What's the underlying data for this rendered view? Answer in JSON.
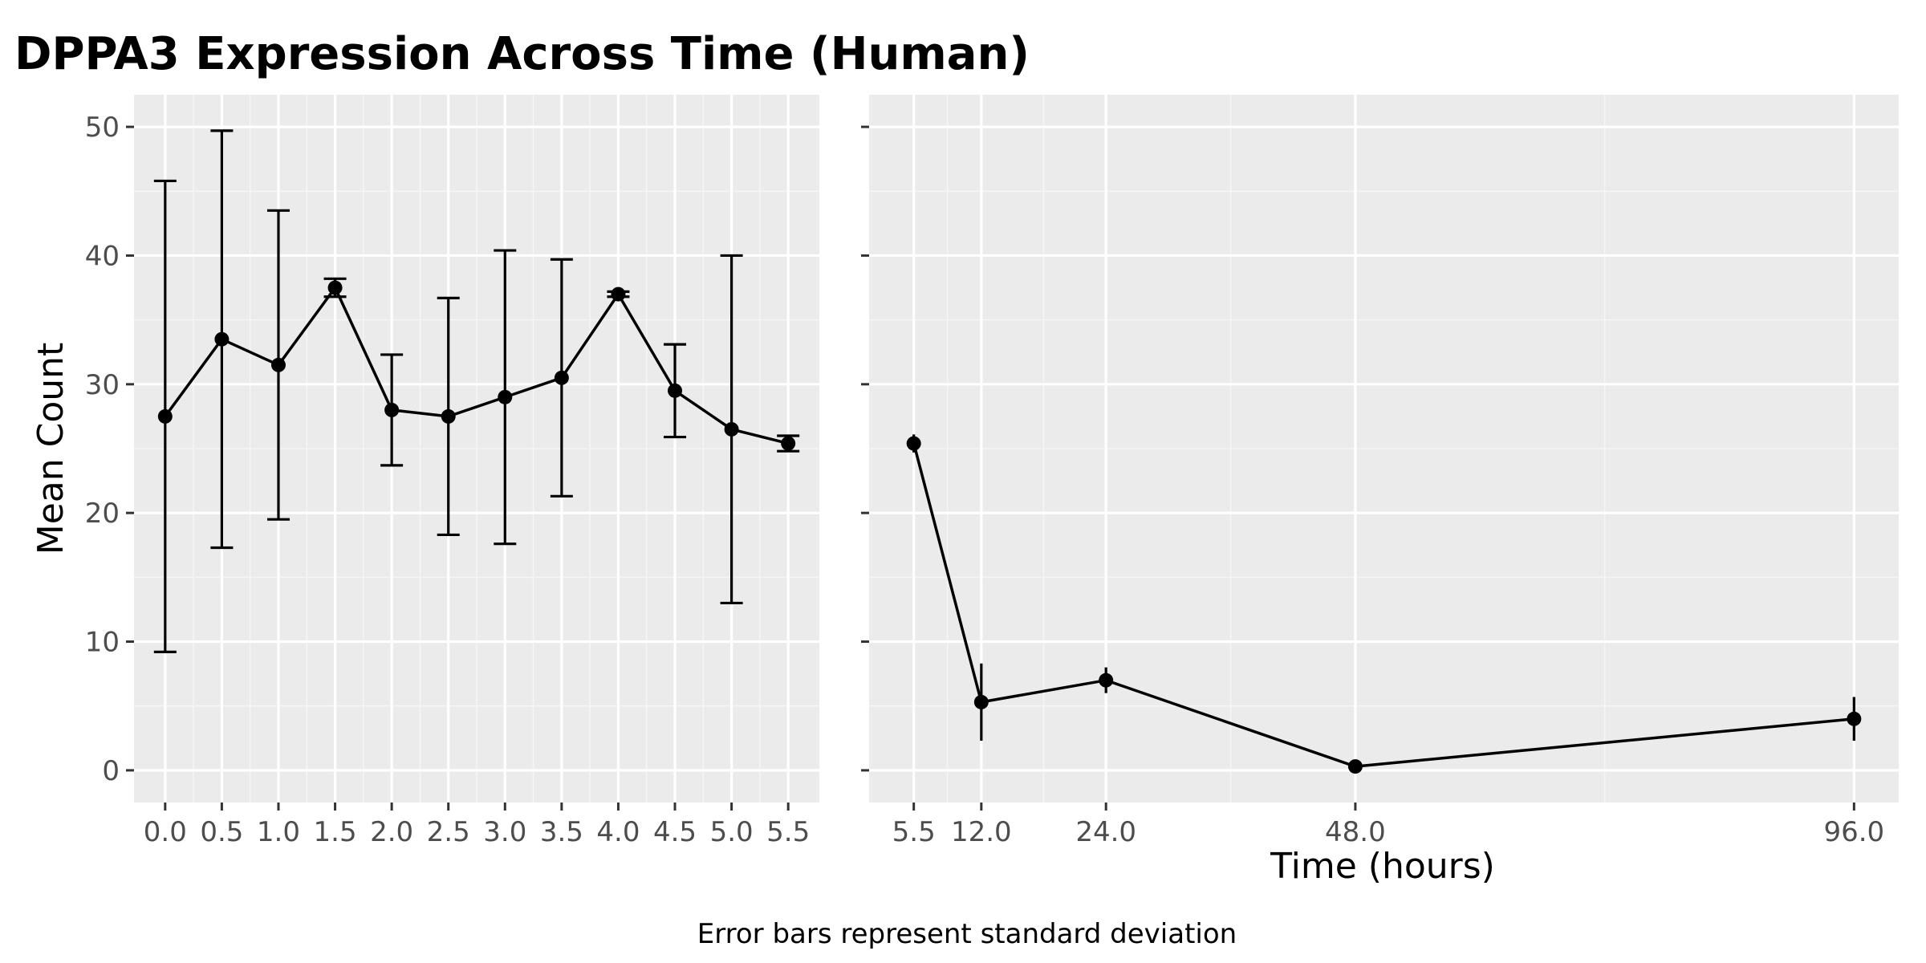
{
  "chart_data": {
    "type": "line",
    "title": "DPPA3 Expression Across Time (Human)",
    "xlabel": "Time (hours)",
    "ylabel": "Mean Count",
    "caption": "Error bars represent standard deviation",
    "ylim": [
      -2.5,
      52.5
    ],
    "yticks": [
      0,
      10,
      20,
      30,
      40,
      50
    ],
    "ytick_labels": [
      "0",
      "10",
      "20",
      "30",
      "40",
      "50"
    ],
    "grid": true,
    "legend": "none",
    "panels": [
      {
        "xlim": [
          -0.275,
          5.775
        ],
        "xticks": [
          0.0,
          0.5,
          1.0,
          1.5,
          2.0,
          2.5,
          3.0,
          3.5,
          4.0,
          4.5,
          5.0,
          5.5
        ],
        "xtick_labels": [
          "0.0",
          "0.5",
          "1.0",
          "1.5",
          "2.0",
          "2.5",
          "3.0",
          "3.5",
          "4.0",
          "4.5",
          "5.0",
          "5.5"
        ],
        "series": [
          {
            "x": [
              0.0,
              0.5,
              1.0,
              1.5,
              2.0,
              2.5,
              3.0,
              3.5,
              4.0,
              4.5,
              5.0,
              5.5
            ],
            "y": [
              27.5,
              33.5,
              31.5,
              37.5,
              28.0,
              27.5,
              29.0,
              30.5,
              37.0,
              29.5,
              26.5,
              25.4
            ],
            "sd": [
              18.3,
              16.2,
              12.0,
              0.7,
              4.3,
              9.2,
              11.4,
              9.2,
              0.2,
              3.6,
              13.5,
              0.6
            ]
          }
        ]
      },
      {
        "xlim": [
          1.2,
          100.3
        ],
        "xticks": [
          5.5,
          12.0,
          24.0,
          48.0,
          96.0
        ],
        "xtick_labels": [
          "5.5",
          "12.0",
          "24.0",
          "48.0",
          "96.0"
        ],
        "series": [
          {
            "x": [
              5.5,
              12.0,
              24.0,
              48.0,
              96.0
            ],
            "y": [
              25.4,
              5.3,
              7.0,
              0.3,
              4.0
            ],
            "sd": [
              0.7,
              3.0,
              1.0,
              0.5,
              1.7
            ]
          }
        ]
      }
    ],
    "colors": {
      "panel_background": "#ebebeb",
      "grid_major": "#ffffff",
      "grid_minor": "#f5f5f5",
      "line": "#000000",
      "tick_text": "#4d4d4d"
    }
  }
}
